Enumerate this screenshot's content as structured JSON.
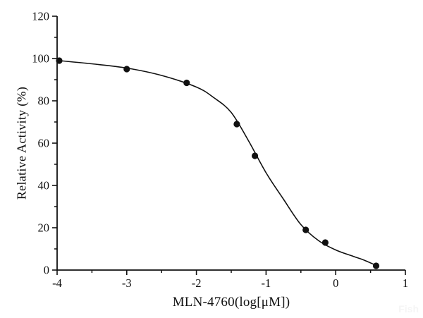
{
  "figure": {
    "background": "#ffffff",
    "ink_color": "#111111",
    "watermark": "Fish",
    "watermark_color": "#f5f5f5"
  },
  "chart_data": {
    "type": "scatter",
    "title": "",
    "xlabel": "MLN-4760(log[μM])",
    "ylabel": "Relative Activity (%)",
    "xlim": [
      -4,
      1
    ],
    "ylim": [
      0,
      120
    ],
    "x_major_ticks": [
      -4,
      -3,
      -2,
      -1,
      0,
      1
    ],
    "x_tick_labels": [
      "-4",
      "-3",
      "-2",
      "-1",
      "0",
      "1"
    ],
    "x_minor_step": 0.5,
    "y_major_ticks": [
      0,
      20,
      40,
      60,
      80,
      100,
      120
    ],
    "y_tick_labels": [
      "0",
      "20",
      "40",
      "60",
      "80",
      "100",
      "120"
    ],
    "y_minor_step": 10,
    "grid": false,
    "legend": null,
    "series": [
      {
        "name": "measured-points",
        "type": "scatter",
        "marker": "filled-circle",
        "color": "#111111",
        "points": [
          [
            -3.97,
            99
          ],
          [
            -3.0,
            95
          ],
          [
            -2.14,
            88.5
          ],
          [
            -1.42,
            69
          ],
          [
            -1.16,
            54
          ],
          [
            -0.43,
            19
          ],
          [
            -0.15,
            13
          ],
          [
            0.58,
            2
          ]
        ]
      },
      {
        "name": "fit-curve",
        "type": "line",
        "color": "#111111",
        "points": [
          [
            -3.97,
            99
          ],
          [
            -3.5,
            97.5
          ],
          [
            -3.0,
            95.5
          ],
          [
            -2.5,
            92
          ],
          [
            -2.0,
            86.5
          ],
          [
            -1.75,
            81.5
          ],
          [
            -1.5,
            74.5
          ],
          [
            -1.25,
            61
          ],
          [
            -1.0,
            46
          ],
          [
            -0.75,
            33.5
          ],
          [
            -0.5,
            21.5
          ],
          [
            -0.25,
            14
          ],
          [
            0.0,
            9.5
          ],
          [
            0.25,
            6.5
          ],
          [
            0.4,
            4.8
          ],
          [
            0.58,
            2.2
          ]
        ]
      }
    ]
  }
}
